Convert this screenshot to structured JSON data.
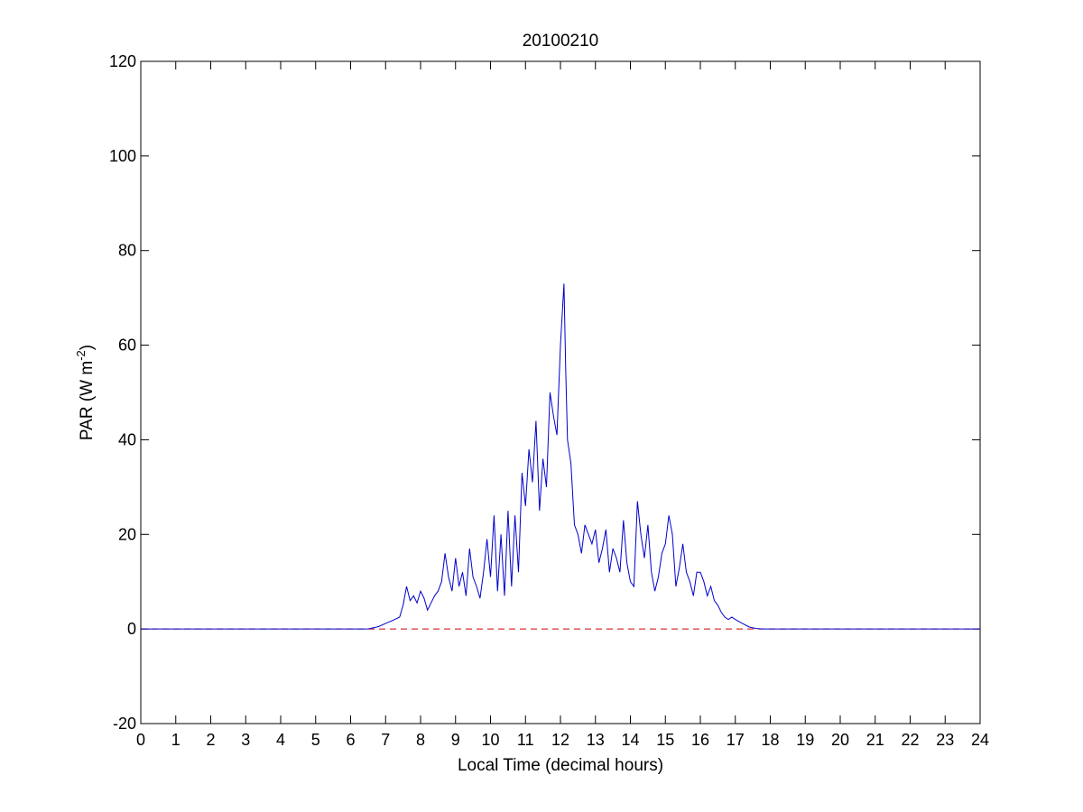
{
  "chart_data": {
    "type": "line",
    "title": "20100210",
    "xlabel": "Local Time (decimal hours)",
    "ylabel_main": "PAR (W m",
    "ylabel_sup": "-2",
    "ylabel_close": ")",
    "xlim": [
      0,
      24
    ],
    "ylim": [
      -20,
      120
    ],
    "xticks": [
      0,
      1,
      2,
      3,
      4,
      5,
      6,
      7,
      8,
      9,
      10,
      11,
      12,
      13,
      14,
      15,
      16,
      17,
      18,
      19,
      20,
      21,
      22,
      23,
      24
    ],
    "yticks": [
      -20,
      0,
      20,
      40,
      60,
      80,
      100,
      120
    ],
    "grid": false,
    "series": [
      {
        "color": "#0000cc",
        "style": "solid",
        "x": [
          0,
          6.5,
          6.8,
          7.0,
          7.2,
          7.4,
          7.5,
          7.6,
          7.7,
          7.8,
          7.9,
          8.0,
          8.1,
          8.2,
          8.3,
          8.4,
          8.5,
          8.6,
          8.7,
          8.8,
          8.9,
          9.0,
          9.1,
          9.2,
          9.3,
          9.4,
          9.5,
          9.6,
          9.7,
          9.8,
          9.9,
          10.0,
          10.1,
          10.2,
          10.3,
          10.4,
          10.5,
          10.6,
          10.7,
          10.8,
          10.9,
          11.0,
          11.1,
          11.2,
          11.3,
          11.4,
          11.5,
          11.6,
          11.7,
          11.8,
          11.9,
          12.0,
          12.1,
          12.15,
          12.2,
          12.3,
          12.4,
          12.5,
          12.6,
          12.7,
          12.8,
          12.9,
          13.0,
          13.1,
          13.2,
          13.3,
          13.4,
          13.5,
          13.6,
          13.7,
          13.8,
          13.9,
          14.0,
          14.1,
          14.2,
          14.3,
          14.4,
          14.5,
          14.6,
          14.7,
          14.8,
          14.9,
          15.0,
          15.1,
          15.2,
          15.3,
          15.4,
          15.5,
          15.6,
          15.7,
          15.8,
          15.9,
          16.0,
          16.1,
          16.2,
          16.3,
          16.4,
          16.5,
          16.6,
          16.7,
          16.8,
          16.9,
          17.0,
          17.2,
          17.4,
          17.6,
          17.8,
          18.0,
          24
        ],
        "y": [
          0,
          0,
          0.5,
          1.2,
          1.8,
          2.5,
          5,
          9,
          6,
          7,
          5.5,
          8,
          6.5,
          4,
          5.5,
          7,
          8,
          10,
          16,
          11,
          8,
          15,
          9,
          12,
          7,
          17,
          11,
          9,
          6.5,
          12,
          19,
          11,
          24,
          8,
          20,
          7,
          25,
          9,
          24,
          12,
          33,
          26,
          38,
          31,
          44,
          25,
          36,
          30,
          50,
          45,
          41,
          60,
          73,
          55,
          40,
          35,
          22,
          20,
          16,
          22,
          20,
          18,
          21,
          14,
          17,
          21,
          12,
          17,
          15,
          12,
          23,
          14,
          10,
          9,
          27,
          20,
          15,
          22,
          12,
          8,
          11,
          16,
          18,
          24,
          20,
          9,
          13,
          18,
          12,
          10,
          7,
          12,
          12,
          10,
          7,
          9,
          6,
          5,
          3.5,
          2.5,
          2,
          2.5,
          2,
          1.2,
          0.4,
          0.1,
          0,
          0,
          0
        ]
      },
      {
        "color": "#cc0000",
        "style": "dashed",
        "x": [
          0,
          24
        ],
        "y": [
          0,
          0
        ]
      }
    ]
  }
}
